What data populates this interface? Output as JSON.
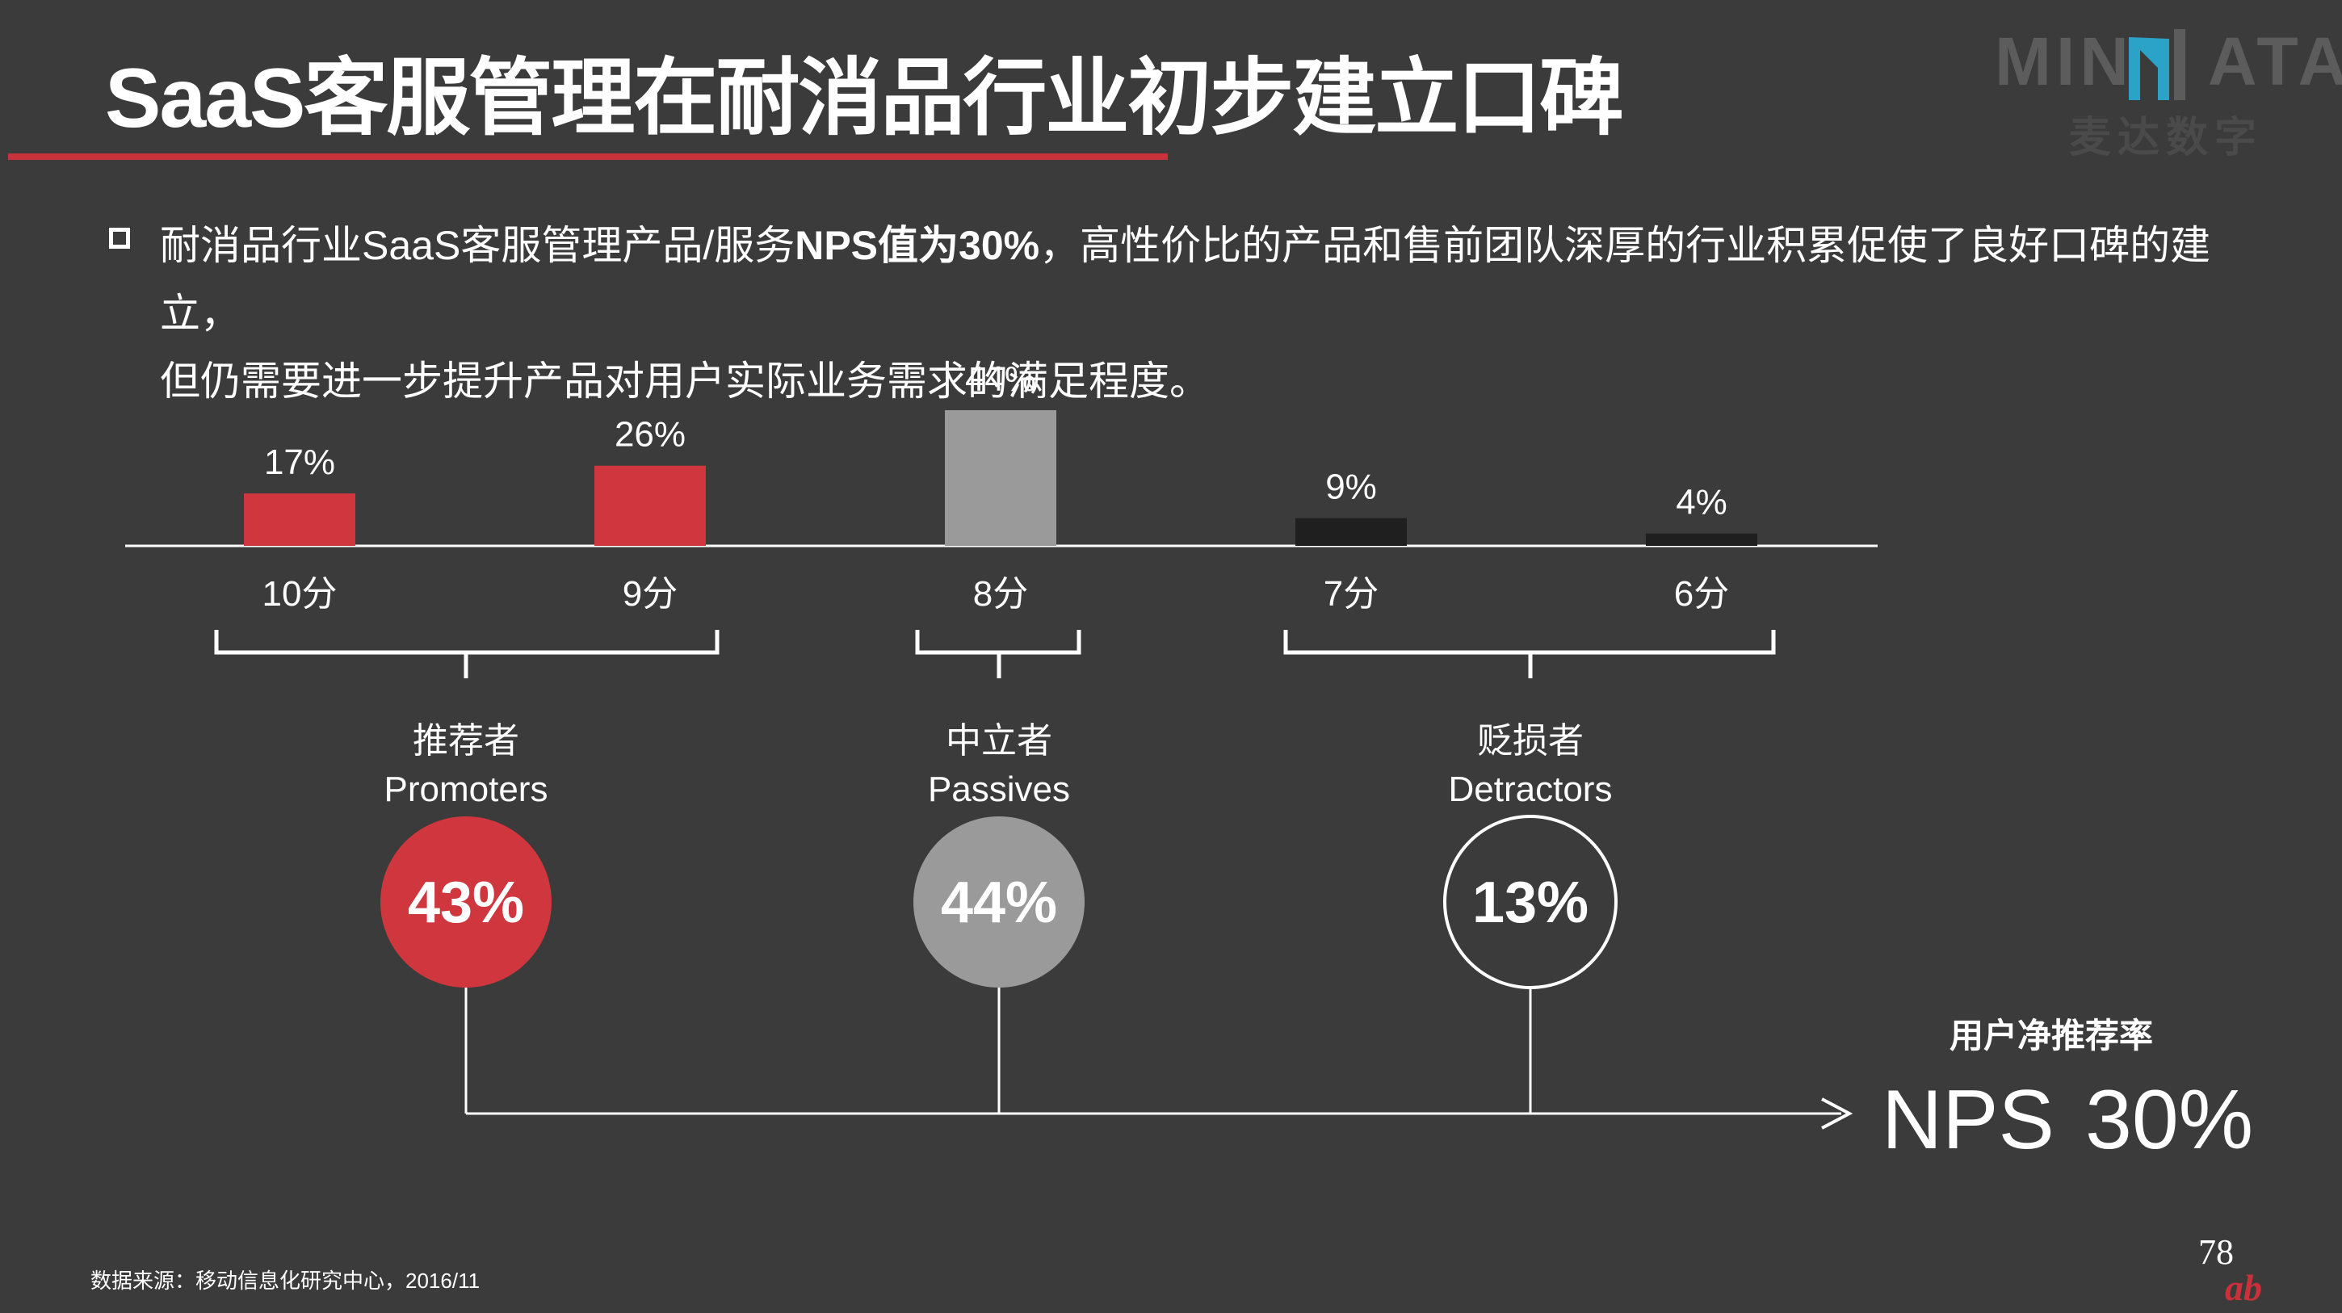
{
  "title": "SaaS客服管理在耐消品行业初步建立口碑",
  "logo": {
    "text_left": "MIN",
    "text_right": "ATA",
    "subtitle": "麦达数字"
  },
  "description": {
    "part1": "耐消品行业SaaS客服管理产品/服务",
    "bold": "NPS值为30%",
    "part2": "，高性价比的产品和售前团队深厚的行业积累促使了良好口碑的建立，",
    "line2": "但仍需要进一步提升产品对用户实际业务需求的满足程度。"
  },
  "chart_data": {
    "type": "bar",
    "categories": [
      "10分",
      "9分",
      "8分",
      "7分",
      "6分"
    ],
    "values": [
      17,
      26,
      44,
      9,
      4
    ],
    "value_labels": [
      "17%",
      "26%",
      "44%",
      "9%",
      "4%"
    ],
    "unit": "%",
    "bar_colors": [
      "#d0363d",
      "#d0363d",
      "#9a9a9a",
      "#1f1f1f",
      "#1f1f1f"
    ],
    "ylim": [
      0,
      44
    ],
    "groups": [
      {
        "label_cn": "推荐者",
        "label_en": "Promoters",
        "share": "43%",
        "categories": [
          "10分",
          "9分"
        ],
        "color": "#d0363d",
        "style": "filled"
      },
      {
        "label_cn": "中立者",
        "label_en": "Passives",
        "share": "44%",
        "categories": [
          "8分"
        ],
        "color": "#9a9a9a",
        "style": "filled"
      },
      {
        "label_cn": "贬损者",
        "label_en": "Detractors",
        "share": "13%",
        "categories": [
          "7分",
          "6分"
        ],
        "color": "#ffffff",
        "style": "outline"
      }
    ],
    "result": {
      "label": "用户净推荐率",
      "name": "NPS",
      "value": "30%"
    }
  },
  "source": "数据来源：移动信息化研究中心，2016/11",
  "page_number": "78",
  "colors": {
    "background": "#3b3b3b",
    "accent": "#c9323a"
  }
}
